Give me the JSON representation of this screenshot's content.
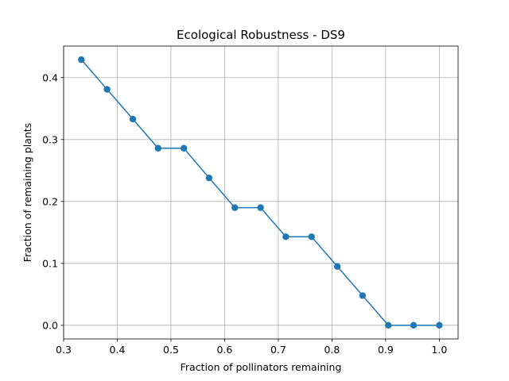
{
  "chart_data": {
    "type": "line",
    "title": "Ecological Robustness - DS9",
    "xlabel": "Fraction of pollinators remaining",
    "ylabel": "Fraction of remaining plants",
    "xlim": [
      0.3,
      1.035
    ],
    "ylim": [
      -0.022,
      0.451
    ],
    "xticks": [
      "0.3",
      "0.4",
      "0.5",
      "0.6",
      "0.7",
      "0.8",
      "0.9",
      "1.0"
    ],
    "yticks": [
      "0.0",
      "0.1",
      "0.2",
      "0.3",
      "0.4"
    ],
    "grid": true,
    "markers": "circle",
    "color": "#1f77b4",
    "series": [
      {
        "x": [
          0.333,
          0.381,
          0.429,
          0.476,
          0.524,
          0.571,
          0.619,
          0.667,
          0.714,
          0.762,
          0.81,
          0.857,
          0.905,
          0.952,
          1.0
        ],
        "y": [
          0.429,
          0.381,
          0.333,
          0.286,
          0.286,
          0.238,
          0.19,
          0.19,
          0.143,
          0.143,
          0.095,
          0.048,
          0.0,
          0.0,
          0.0
        ]
      }
    ]
  }
}
